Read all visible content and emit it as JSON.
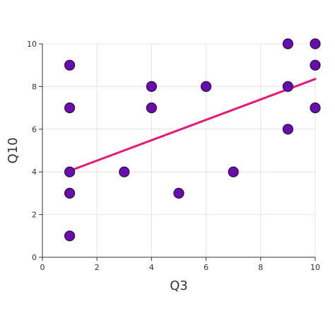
{
  "chart_data": {
    "type": "scatter",
    "title": "",
    "xlabel": "Q3",
    "ylabel": "Q10",
    "xlim": [
      0,
      10
    ],
    "ylim": [
      0,
      10
    ],
    "xticks": [
      0,
      2,
      4,
      6,
      8,
      10
    ],
    "yticks": [
      0,
      2,
      4,
      6,
      8,
      10
    ],
    "grid": true,
    "series": [
      {
        "type": "scatter",
        "color": "#6a0dad",
        "edge_color": "#2b0a4a",
        "points": [
          {
            "x": 1,
            "y": 9
          },
          {
            "x": 1,
            "y": 7
          },
          {
            "x": 1,
            "y": 4
          },
          {
            "x": 1,
            "y": 3
          },
          {
            "x": 1,
            "y": 1
          },
          {
            "x": 3,
            "y": 4
          },
          {
            "x": 4,
            "y": 8
          },
          {
            "x": 4,
            "y": 7
          },
          {
            "x": 5,
            "y": 3
          },
          {
            "x": 6,
            "y": 8
          },
          {
            "x": 7,
            "y": 4
          },
          {
            "x": 9,
            "y": 10
          },
          {
            "x": 9,
            "y": 8
          },
          {
            "x": 9,
            "y": 6
          },
          {
            "x": 10,
            "y": 10
          },
          {
            "x": 10,
            "y": 9
          },
          {
            "x": 10,
            "y": 7
          }
        ]
      },
      {
        "type": "line",
        "color": "#e6197a",
        "points": [
          {
            "x": 1,
            "y": 4.05
          },
          {
            "x": 10,
            "y": 8.35
          }
        ]
      }
    ]
  }
}
